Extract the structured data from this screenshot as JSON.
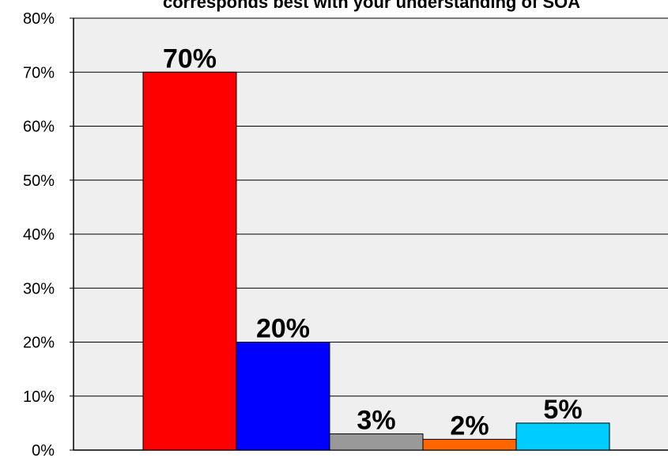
{
  "chart_data": {
    "type": "bar",
    "title": "corresponds best with your understanding of SOA",
    "xlabel": "",
    "ylabel": "",
    "ylim": [
      0,
      80
    ],
    "y_unit": "%",
    "yticks": [
      "0%",
      "10%",
      "20%",
      "30%",
      "40%",
      "50%",
      "60%",
      "70%",
      "80%"
    ],
    "grid": true,
    "legend": "none",
    "background_color": "#efefef",
    "values": [
      70,
      20,
      3,
      2,
      5
    ],
    "data_labels": [
      "70%",
      "20%",
      "3%",
      "2%",
      "5%"
    ],
    "colors": [
      "#ff0000",
      "#0000ff",
      "#999999",
      "#ff6600",
      "#00ccff"
    ]
  }
}
